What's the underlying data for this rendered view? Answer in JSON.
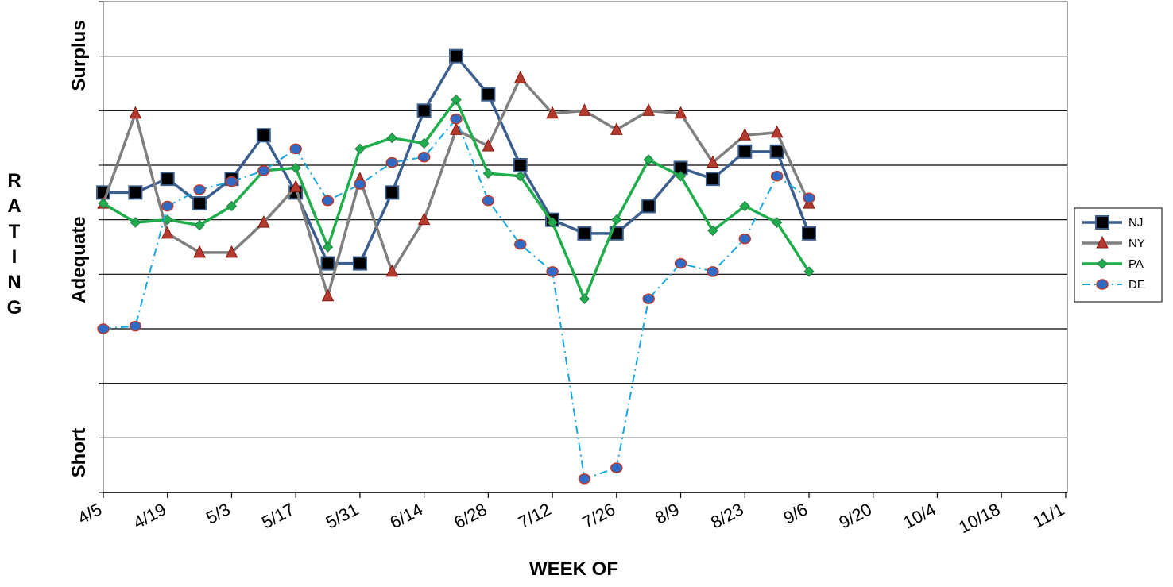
{
  "chart_data": {
    "type": "line",
    "xlabel": "WEEK OF",
    "ylabel": "RATING",
    "y_category_labels": [
      "Short",
      "Adequate",
      "Surplus"
    ],
    "x_tick_labels": [
      "4/5",
      "4/19",
      "5/3",
      "5/17",
      "5/31",
      "6/14",
      "6/28",
      "7/12",
      "7/26",
      "8/9",
      "8/23",
      "9/6",
      "9/20",
      "10/4",
      "10/18",
      "11/1"
    ],
    "x_points": [
      "4/5",
      "4/12",
      "4/19",
      "4/26",
      "5/3",
      "5/10",
      "5/17",
      "5/24",
      "5/31",
      "6/7",
      "6/14",
      "6/21",
      "6/28",
      "7/5",
      "7/12",
      "7/19",
      "7/26",
      "8/2",
      "8/9",
      "8/16",
      "8/23",
      "8/30",
      "9/6"
    ],
    "ylim": [
      0,
      9
    ],
    "grid": true,
    "legend_position": "right",
    "series": [
      {
        "name": "NJ",
        "color": "#3B5E8C",
        "style": "solid",
        "marker": "square",
        "values": [
          5.5,
          5.5,
          5.75,
          5.3,
          5.75,
          6.55,
          5.5,
          4.2,
          4.2,
          5.5,
          7.0,
          8.0,
          7.3,
          6.0,
          5.0,
          4.75,
          4.75,
          5.25,
          5.95,
          5.75,
          6.25,
          6.25,
          4.75
        ]
      },
      {
        "name": "NY",
        "color": "#7F7F7F",
        "style": "solid",
        "marker": "triangle",
        "values": [
          5.3,
          6.95,
          4.75,
          4.4,
          4.4,
          4.95,
          5.6,
          3.6,
          5.75,
          4.05,
          5.0,
          6.65,
          6.35,
          7.6,
          6.95,
          7.0,
          6.65,
          7.0,
          6.95,
          6.05,
          6.55,
          6.6,
          5.3
        ]
      },
      {
        "name": "PA",
        "color": "#1FAE4B",
        "style": "solid",
        "marker": "diamond",
        "values": [
          5.3,
          4.95,
          5.0,
          4.9,
          5.25,
          5.9,
          5.95,
          4.5,
          6.3,
          6.5,
          6.4,
          7.2,
          5.85,
          5.8,
          4.95,
          3.55,
          5.0,
          6.1,
          5.8,
          4.8,
          5.25,
          4.95,
          4.05
        ]
      },
      {
        "name": "DE",
        "color": "#17A7E0",
        "style": "dashdot",
        "marker": "circle",
        "values": [
          3.0,
          3.05,
          5.25,
          5.55,
          5.7,
          5.9,
          6.3,
          5.35,
          5.65,
          6.05,
          6.15,
          6.85,
          5.35,
          4.55,
          4.05,
          0.25,
          0.45,
          3.55,
          4.2,
          4.05,
          4.65,
          5.8,
          5.4
        ]
      }
    ]
  }
}
